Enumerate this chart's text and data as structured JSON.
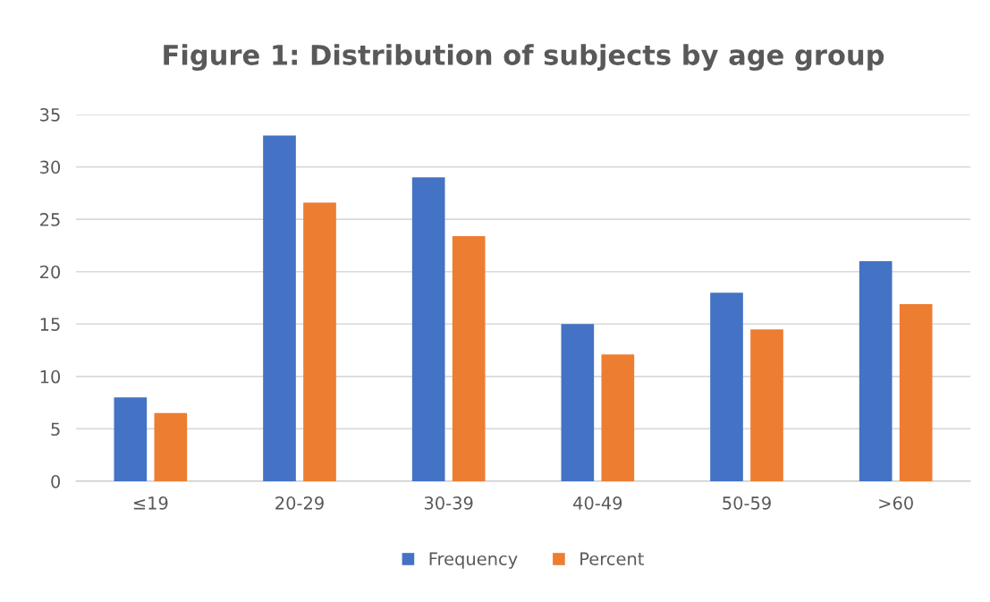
{
  "chart_data": {
    "type": "bar",
    "title": "Figure 1: Distribution of subjects by age group",
    "categories": [
      "≤19",
      "20-29",
      "30-39",
      "40-49",
      "50-59",
      ">60"
    ],
    "series": [
      {
        "name": "Frequency",
        "color": "#4472c4",
        "values": [
          8,
          33,
          29,
          15,
          18,
          21
        ]
      },
      {
        "name": "Percent",
        "color": "#ed7d31",
        "values": [
          6.5,
          26.6,
          23.4,
          12.1,
          14.5,
          16.9
        ]
      }
    ],
    "ylim": [
      0,
      35
    ],
    "yticks": [
      0,
      5,
      10,
      15,
      20,
      25,
      30,
      35
    ],
    "grid": "y",
    "legend": "bottom"
  }
}
